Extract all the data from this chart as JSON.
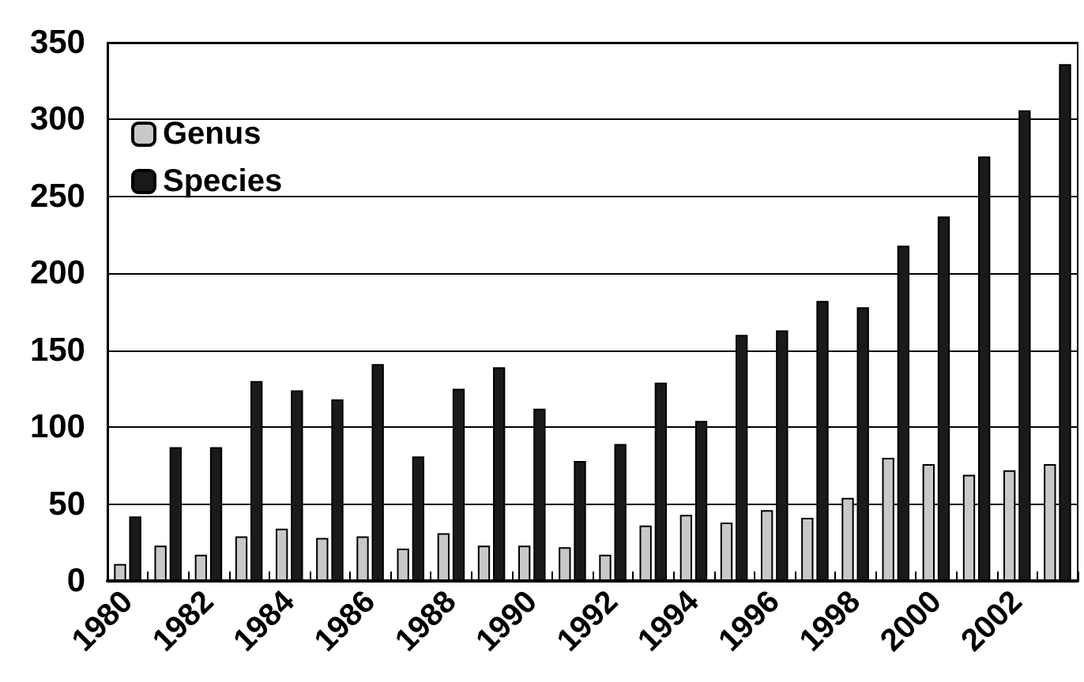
{
  "chart_data": {
    "type": "bar",
    "categories": [
      "1980",
      null,
      "1982",
      null,
      "1984",
      null,
      "1986",
      null,
      "1988",
      null,
      "1990",
      null,
      "1992",
      null,
      "1994",
      null,
      "1996",
      null,
      "1998",
      null,
      "2000",
      null,
      "2002",
      null
    ],
    "series": [
      {
        "name": "Genus",
        "color": "#c8c8c8",
        "values": [
          11,
          23,
          17,
          29,
          34,
          28,
          29,
          21,
          31,
          23,
          23,
          22,
          17,
          36,
          43,
          38,
          46,
          41,
          54,
          80,
          76,
          69,
          72,
          76
        ]
      },
      {
        "name": "Species",
        "color": "#1a1a1a",
        "values": [
          42,
          87,
          87,
          130,
          124,
          118,
          141,
          81,
          125,
          139,
          112,
          78,
          89,
          129,
          104,
          160,
          163,
          182,
          178,
          218,
          237,
          276,
          306,
          336
        ]
      }
    ],
    "ylim": [
      0,
      350
    ],
    "yticks": [
      0,
      50,
      100,
      150,
      200,
      250,
      300,
      350
    ],
    "grid": "y",
    "legend": "top left"
  }
}
